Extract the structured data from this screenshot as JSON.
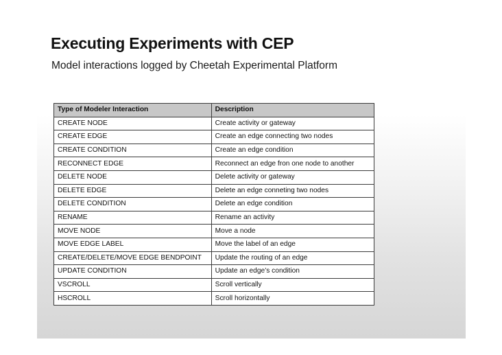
{
  "slide": {
    "title": "Executing Experiments with CEP",
    "subtitle": "Model interactions logged by Cheetah Experimental Platform"
  },
  "table": {
    "headers": [
      "Type of Modeler Interaction",
      "Description"
    ],
    "rows": [
      [
        "CREATE NODE",
        "Create activity or gateway"
      ],
      [
        "CREATE EDGE",
        "Create an edge connecting two nodes"
      ],
      [
        "CREATE CONDITION",
        "Create an edge condition"
      ],
      [
        "RECONNECT EDGE",
        "Reconnect an edge fron one node to another"
      ],
      [
        "DELETE NODE",
        "Delete activity or gateway"
      ],
      [
        "DELETE EDGE",
        "Delete an edge conneting two nodes"
      ],
      [
        "DELETE CONDITION",
        "Delete an edge condition"
      ],
      [
        "RENAME",
        "Rename an activity"
      ],
      [
        "MOVE NODE",
        "Move a node"
      ],
      [
        "MOVE EDGE LABEL",
        "Move the label of an edge"
      ],
      [
        "CREATE/DELETE/MOVE EDGE BENDPOINT",
        "Update the routing of an edge"
      ],
      [
        "UPDATE CONDITION",
        "Update an edge’s condition"
      ],
      [
        "VSCROLL",
        "Scroll vertically"
      ],
      [
        "HSCROLL",
        "Scroll horizontally"
      ]
    ]
  }
}
